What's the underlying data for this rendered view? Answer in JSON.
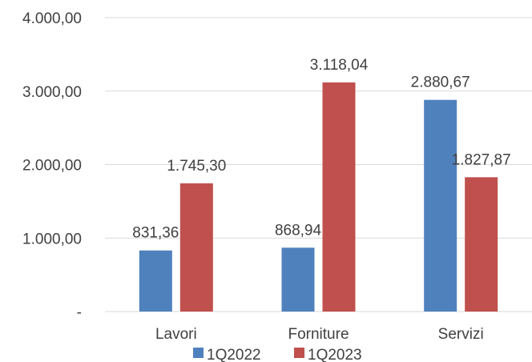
{
  "chart_data": {
    "type": "bar",
    "categories": [
      "Lavori",
      "Forniture",
      "Servizi"
    ],
    "series": [
      {
        "name": "1Q2022",
        "color": "#4F81BD",
        "values": [
          831.36,
          868.94,
          2880.67
        ],
        "labels": [
          "831,36",
          "868,94",
          "2.880,67"
        ]
      },
      {
        "name": "1Q2023",
        "color": "#C0504D",
        "values": [
          1745.3,
          3118.04,
          1827.87
        ],
        "labels": [
          "1.745,30",
          "3.118,04",
          "1.827,87"
        ]
      }
    ],
    "y_ticks": [
      {
        "value": 0,
        "label": "-"
      },
      {
        "value": 1000,
        "label": "1.000,00"
      },
      {
        "value": 2000,
        "label": "2.000,00"
      },
      {
        "value": 3000,
        "label": "3.000,00"
      },
      {
        "value": 4000,
        "label": "4.000,00"
      }
    ],
    "ylim": [
      0,
      4000
    ],
    "title": "",
    "xlabel": "",
    "ylabel": "",
    "grid": true,
    "legend_position": "bottom"
  }
}
